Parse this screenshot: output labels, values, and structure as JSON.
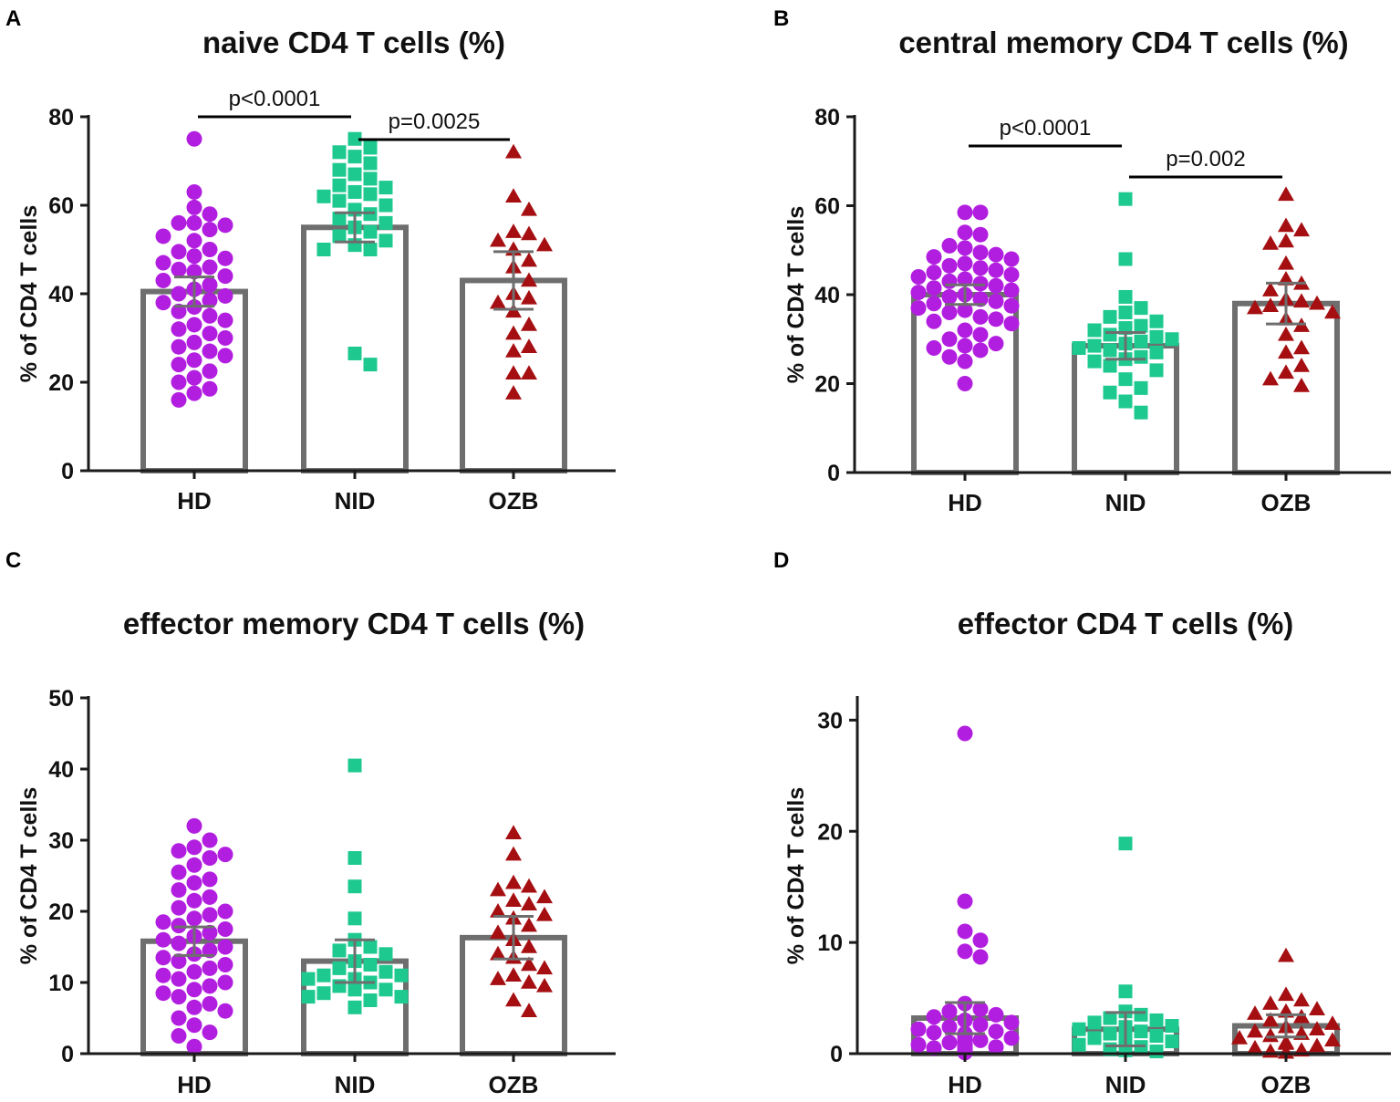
{
  "colors": {
    "HD": "#b21ee0",
    "NID": "#1ec98f",
    "OZB": "#a50f12",
    "bar": "#6e6e6e",
    "axis": "#1a1a1a"
  },
  "chart_data": [
    {
      "panel": "A",
      "type": "bar",
      "title": "naive CD4 T cells (%)",
      "ylabel": "% of CD4 T cells",
      "xlabel": "",
      "categories": [
        "HD",
        "NID",
        "OZB"
      ],
      "ylim": [
        0,
        80
      ],
      "yticks": [
        0,
        20,
        40,
        60,
        80
      ],
      "means": [
        40.5,
        55,
        43
      ],
      "sem": [
        3.3,
        3.3,
        6.5
      ],
      "points": {
        "HD": [
          75,
          63,
          59.5,
          58,
          56,
          56,
          55.5,
          54.5,
          53,
          52,
          50,
          49.5,
          48.5,
          48,
          47,
          46,
          45.5,
          45,
          44,
          43,
          42,
          41,
          40,
          39.5,
          38.5,
          38,
          37,
          36,
          35,
          34,
          33,
          32,
          31,
          30,
          29,
          28,
          27,
          26,
          25,
          24,
          22.5,
          21,
          20,
          18.5,
          17.5,
          16
        ],
        "NID": [
          75,
          73,
          72,
          71,
          69.5,
          68,
          67,
          66,
          64.5,
          64,
          63,
          62.5,
          62,
          61,
          60,
          59,
          58,
          57,
          56,
          55,
          54,
          53,
          52,
          51,
          50,
          50,
          26.5,
          24
        ],
        "OZB": [
          72,
          62,
          59,
          54,
          53.5,
          52,
          51,
          50,
          47.5,
          46,
          43,
          40,
          39,
          38,
          36,
          33,
          31,
          28,
          27,
          22,
          22,
          17.5
        ]
      },
      "significance": [
        {
          "from": "HD",
          "to": "NID",
          "label": "p<0.0001"
        },
        {
          "from": "NID",
          "to": "OZB",
          "label": "p=0.0025"
        }
      ]
    },
    {
      "panel": "B",
      "type": "bar",
      "title": "central memory CD4 T cells (%)",
      "ylabel": "% of CD4 T cells",
      "xlabel": "",
      "categories": [
        "HD",
        "NID",
        "OZB"
      ],
      "ylim": [
        0,
        80
      ],
      "yticks": [
        0,
        20,
        40,
        60,
        80
      ],
      "means": [
        40,
        28.5,
        38
      ],
      "sem": [
        2.2,
        3.0,
        4.6
      ],
      "points": {
        "HD": [
          58.5,
          58.5,
          54,
          53.5,
          51,
          50.5,
          49.5,
          49,
          48.5,
          48,
          47,
          46.5,
          46,
          45.5,
          45,
          44.5,
          44,
          43.5,
          43,
          42.5,
          42,
          41.5,
          41,
          40.5,
          40,
          39.5,
          39,
          38.5,
          38,
          37.5,
          37,
          36.5,
          36,
          35,
          34.5,
          34,
          33.5,
          32,
          31,
          30,
          29,
          28.5,
          28,
          27.5,
          26,
          25,
          20
        ],
        "NID": [
          61.5,
          48,
          39.5,
          37,
          36,
          35,
          34,
          33,
          32.5,
          32,
          31,
          30.5,
          30,
          29.5,
          29,
          28.5,
          28,
          27.5,
          27,
          26,
          25.5,
          25,
          24,
          23,
          21,
          19,
          18,
          16,
          13.5
        ],
        "OZB": [
          62.5,
          55.5,
          54.5,
          52,
          51.5,
          47,
          43.5,
          42.5,
          41,
          39,
          38.5,
          38,
          37.5,
          37,
          36,
          34.5,
          33,
          31,
          28,
          27,
          24,
          22.5,
          21,
          19.5
        ]
      },
      "significance": [
        {
          "from": "HD",
          "to": "NID",
          "label": "p<0.0001"
        },
        {
          "from": "NID",
          "to": "OZB",
          "label": "p=0.002"
        }
      ]
    },
    {
      "panel": "C",
      "type": "bar",
      "title": "effector memory CD4 T cells (%)",
      "ylabel": "% of CD4 T cells",
      "xlabel": "",
      "categories": [
        "HD",
        "NID",
        "OZB"
      ],
      "ylim": [
        0,
        50
      ],
      "yticks": [
        0,
        10,
        20,
        30,
        40,
        50
      ],
      "means": [
        15.8,
        13,
        16.3
      ],
      "sem": [
        2.0,
        3.0,
        3.0
      ],
      "points": {
        "HD": [
          32,
          30,
          29,
          28.5,
          28,
          27.5,
          26.5,
          25.5,
          24.5,
          24,
          23,
          22,
          21.5,
          20.5,
          20,
          19.5,
          19,
          18.5,
          18,
          17.5,
          17,
          16.5,
          16,
          15.5,
          15,
          14.5,
          14,
          13.5,
          13,
          12.5,
          12,
          11.5,
          11,
          10.5,
          10,
          9.5,
          9,
          8.5,
          8,
          7,
          6.5,
          6,
          5,
          4,
          3,
          2.5,
          1
        ],
        "NID": [
          40.5,
          27.5,
          23.5,
          19,
          16,
          15,
          14.5,
          14,
          13,
          12.5,
          12,
          11.5,
          11,
          11,
          10.5,
          10.5,
          10,
          10,
          9.5,
          9.5,
          9,
          9,
          8.5,
          8,
          8,
          7.5,
          6.5
        ],
        "OZB": [
          31,
          28,
          24,
          23.5,
          23,
          22,
          21.5,
          21,
          20,
          19.5,
          19,
          18,
          17,
          16,
          15,
          14,
          13.5,
          12.5,
          12,
          11,
          10.5,
          10,
          9.5,
          7.5,
          6
        ]
      },
      "significance": []
    },
    {
      "panel": "D",
      "type": "bar",
      "title": "effector CD4 T cells (%)",
      "ylabel": "% of CD4 T cells",
      "xlabel": "",
      "categories": [
        "HD",
        "NID",
        "OZB"
      ],
      "ylim": [
        0,
        32
      ],
      "yticks": [
        0,
        10,
        20,
        30
      ],
      "means": [
        3.2,
        2.2,
        2.5
      ],
      "sem": [
        1.4,
        1.5,
        1.0
      ],
      "points": {
        "HD": [
          28.8,
          13.7,
          11,
          10.2,
          9.2,
          8.7,
          4.5,
          4,
          3.8,
          3.5,
          3.3,
          3,
          2.8,
          2.6,
          2.4,
          2.2,
          2,
          1.9,
          1.8,
          1.7,
          1.6,
          1.5,
          1.4,
          1.3,
          1.2,
          1.1,
          1,
          0.9,
          0.9,
          0.8,
          0.8,
          0.7,
          0.7,
          0.6,
          0.6,
          0.5,
          0.5,
          0.4,
          0.4,
          0.3,
          0.3,
          0.2,
          0.2,
          0.1,
          0.1
        ],
        "NID": [
          18.9,
          5.6,
          3.8,
          3.5,
          3.2,
          3,
          2.8,
          2.5,
          2.4,
          2.2,
          2,
          1.9,
          1.8,
          1.7,
          1.6,
          1.5,
          1.4,
          1.3,
          1.2,
          1.1,
          1,
          0.9,
          0.8,
          0.7,
          0.6,
          0.5,
          0.4,
          0.3,
          0.2
        ],
        "OZB": [
          8.8,
          5.3,
          4.8,
          4.5,
          4,
          3.8,
          3.6,
          3.3,
          3,
          2.7,
          2.4,
          2.2,
          2,
          1.8,
          1.6,
          1.4,
          1.2,
          1,
          0.9,
          0.7,
          0.5,
          0.3,
          0.2,
          0.1
        ]
      },
      "significance": []
    }
  ]
}
